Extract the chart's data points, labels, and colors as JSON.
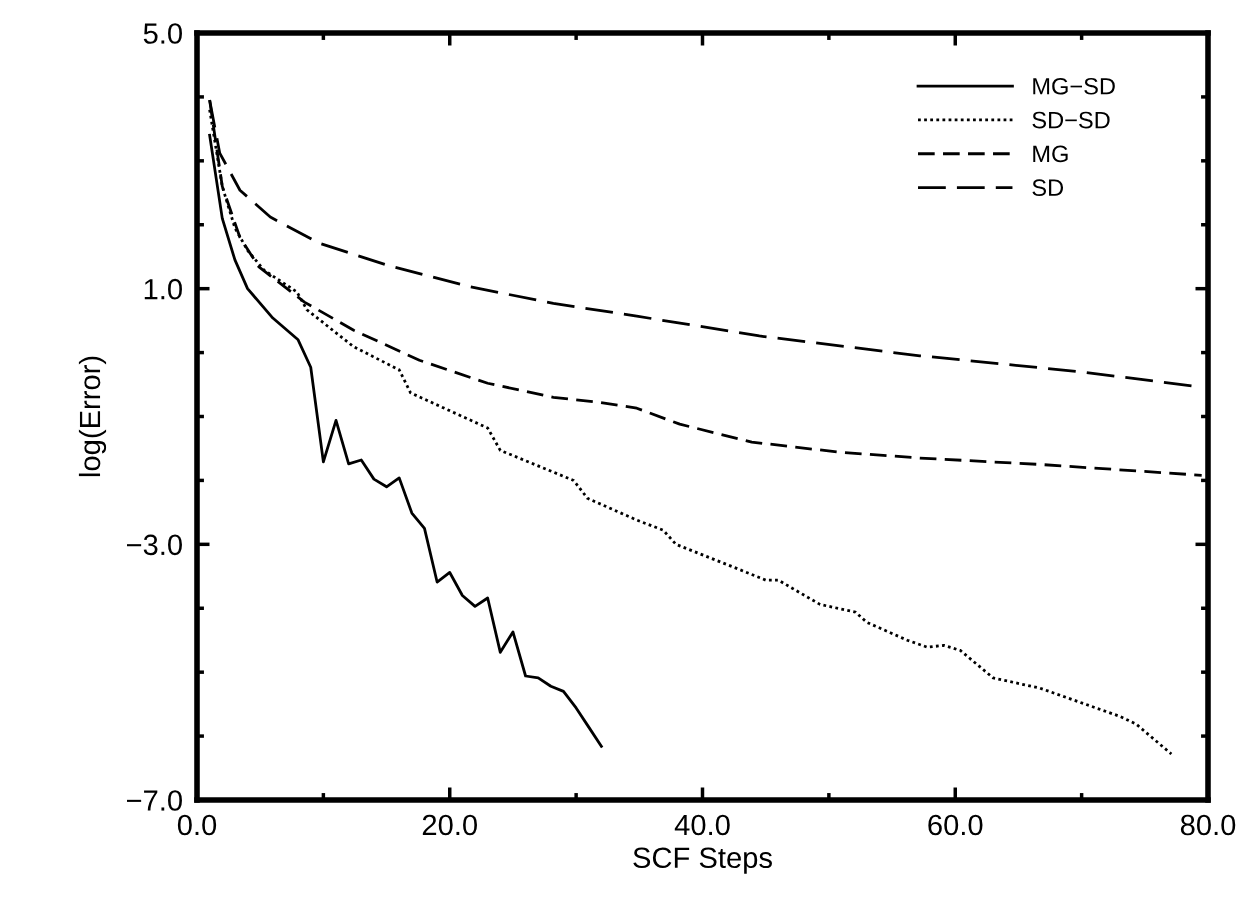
{
  "chart_data": {
    "type": "line",
    "xlabel": "SCF Steps",
    "ylabel": "log(Error)",
    "xlim": [
      0,
      80
    ],
    "ylim": [
      -7,
      5
    ],
    "xticks": [
      {
        "value": 0,
        "label": "0.0"
      },
      {
        "value": 10,
        "label": null
      },
      {
        "value": 20,
        "label": "20.0"
      },
      {
        "value": 30,
        "label": null
      },
      {
        "value": 40,
        "label": "40.0"
      },
      {
        "value": 50,
        "label": null
      },
      {
        "value": 60,
        "label": "60.0"
      },
      {
        "value": 70,
        "label": null
      },
      {
        "value": 80,
        "label": "80.0"
      }
    ],
    "yticks": [
      {
        "value": -7,
        "label": "−7.0"
      },
      {
        "value": -6,
        "label": null
      },
      {
        "value": -5,
        "label": null
      },
      {
        "value": -4,
        "label": null
      },
      {
        "value": -3,
        "label": "−3.0"
      },
      {
        "value": -2,
        "label": null
      },
      {
        "value": -1,
        "label": null
      },
      {
        "value": 0,
        "label": null
      },
      {
        "value": 1,
        "label": "1.0"
      },
      {
        "value": 2,
        "label": null
      },
      {
        "value": 3,
        "label": null
      },
      {
        "value": 4,
        "label": null
      },
      {
        "value": 5,
        "label": "5.0"
      }
    ],
    "grid": false,
    "legend": "top right",
    "marker": "none",
    "series": [
      {
        "name": "MG−SD",
        "color": "#000000",
        "line_style": "solid",
        "x": [
          1,
          2,
          3,
          4,
          6,
          8,
          9,
          10,
          11,
          12,
          13,
          14,
          15,
          16,
          17,
          18,
          19,
          20,
          21,
          22,
          23,
          24,
          25,
          26,
          27,
          28,
          29,
          30,
          31,
          32
        ],
        "values": [
          3.4,
          2.1,
          1.45,
          1.0,
          0.54,
          0.2,
          -0.23,
          -1.71,
          -1.06,
          -1.74,
          -1.68,
          -1.98,
          -2.1,
          -1.96,
          -2.51,
          -2.75,
          -3.59,
          -3.44,
          -3.8,
          -3.97,
          -3.84,
          -4.69,
          -4.37,
          -5.06,
          -5.09,
          -5.22,
          -5.3,
          -5.56,
          -5.86,
          -6.16
        ]
      },
      {
        "name": "SD−SD",
        "color": "#000000",
        "line_style": "dotted",
        "x": [
          1,
          2,
          3,
          4,
          5.3,
          7.9,
          8.7,
          12.4,
          16,
          16.9,
          23,
          24,
          29.8,
          30.9,
          34.8,
          36.9,
          37.9,
          43,
          45,
          46,
          49.3,
          52.1,
          53,
          56.2,
          57.8,
          59.1,
          60.4,
          63,
          66.7,
          73,
          74.3,
          77.1
        ],
        "values": [
          3.8,
          2.6,
          1.95,
          1.6,
          1.29,
          0.95,
          0.67,
          0.09,
          -0.27,
          -0.63,
          -1.18,
          -1.53,
          -2.0,
          -2.28,
          -2.62,
          -2.78,
          -3.0,
          -3.4,
          -3.56,
          -3.56,
          -3.94,
          -4.06,
          -4.22,
          -4.5,
          -4.61,
          -4.58,
          -4.66,
          -5.09,
          -5.25,
          -5.69,
          -5.81,
          -6.28
        ]
      },
      {
        "name": "MG",
        "color": "#000000",
        "line_style": "dashed",
        "x": [
          1,
          2,
          3.4,
          4.9,
          8.5,
          12.4,
          17.6,
          23,
          28.2,
          31.9,
          34.8,
          38.2,
          43.9,
          50.9,
          57.2,
          66.7,
          79.5
        ],
        "values": [
          3.95,
          2.6,
          1.8,
          1.34,
          0.79,
          0.35,
          -0.12,
          -0.48,
          -0.7,
          -0.78,
          -0.87,
          -1.12,
          -1.4,
          -1.56,
          -1.65,
          -1.75,
          -1.92
        ]
      },
      {
        "name": "SD",
        "color": "#000000",
        "line_style": "dashed",
        "x": [
          1,
          1.8,
          3.4,
          5.8,
          9.7,
          15,
          21.6,
          28.2,
          34.8,
          44.5,
          57.2,
          69.9,
          79.5
        ],
        "values": [
          3.95,
          3.12,
          2.54,
          2.12,
          1.71,
          1.37,
          1.03,
          0.77,
          0.57,
          0.26,
          -0.05,
          -0.3,
          -0.54
        ]
      }
    ]
  }
}
